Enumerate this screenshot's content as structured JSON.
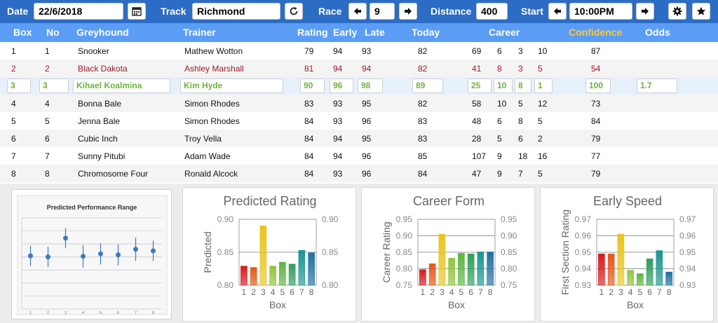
{
  "toolbar": {
    "date_label": "Date",
    "date_value": "22/6/2018",
    "track_label": "Track",
    "track_value": "Richmond",
    "race_label": "Race",
    "race_value": "9",
    "distance_label": "Distance",
    "distance_value": "400",
    "start_label": "Start",
    "start_value": "10:00PM",
    "icons": [
      "calendar-icon",
      "refresh-icon",
      "arrow-left-icon",
      "arrow-right-icon",
      "gear-icon",
      "star-icon"
    ]
  },
  "table": {
    "headers": {
      "box": "Box",
      "no": "No",
      "greyhound": "Greyhound",
      "trainer": "Trainer",
      "rating": "Rating",
      "early": "Early",
      "late": "Late",
      "today": "Today",
      "career": "Career",
      "confidence": "Confidence",
      "odds": "Odds"
    },
    "rows": [
      {
        "box": "1",
        "no": "1",
        "greyhound": "Snooker",
        "trainer": "Mathew Wotton",
        "rating": "79",
        "early": "94",
        "late": "93",
        "today": "82",
        "c1": "69",
        "c2": "6",
        "c3": "3",
        "c4": "10",
        "confidence": "87",
        "odds": ""
      },
      {
        "box": "2",
        "no": "2",
        "greyhound": "Black Dakota",
        "trainer": "Ashley Marshall",
        "rating": "81",
        "early": "94",
        "late": "94",
        "today": "82",
        "c1": "41",
        "c2": "8",
        "c3": "3",
        "c4": "5",
        "confidence": "54",
        "odds": ""
      },
      {
        "box": "3",
        "no": "3",
        "greyhound": "Kihael Koalmina",
        "trainer": "Kim Hyde",
        "rating": "90",
        "early": "96",
        "late": "98",
        "today": "89",
        "c1": "25",
        "c2": "10",
        "c3": "8",
        "c4": "1",
        "confidence": "100",
        "odds": "1.7"
      },
      {
        "box": "4",
        "no": "4",
        "greyhound": "Bonna Bale",
        "trainer": "Simon Rhodes",
        "rating": "83",
        "early": "93",
        "late": "95",
        "today": "82",
        "c1": "58",
        "c2": "10",
        "c3": "5",
        "c4": "12",
        "confidence": "73",
        "odds": ""
      },
      {
        "box": "5",
        "no": "5",
        "greyhound": "Jenna Bale",
        "trainer": "Simon Rhodes",
        "rating": "84",
        "early": "93",
        "late": "96",
        "today": "83",
        "c1": "48",
        "c2": "6",
        "c3": "8",
        "c4": "5",
        "confidence": "84",
        "odds": ""
      },
      {
        "box": "6",
        "no": "6",
        "greyhound": "Cubic Inch",
        "trainer": "Troy Vella",
        "rating": "84",
        "early": "94",
        "late": "95",
        "today": "83",
        "c1": "28",
        "c2": "5",
        "c3": "6",
        "c4": "2",
        "confidence": "79",
        "odds": ""
      },
      {
        "box": "7",
        "no": "7",
        "greyhound": "Sunny Pitubi",
        "trainer": "Adam Wade",
        "rating": "84",
        "early": "94",
        "late": "96",
        "today": "85",
        "c1": "107",
        "c2": "9",
        "c3": "18",
        "c4": "16",
        "confidence": "77",
        "odds": ""
      },
      {
        "box": "8",
        "no": "8",
        "greyhound": "Chromosome Four",
        "trainer": "Ronald Alcock",
        "rating": "84",
        "early": "93",
        "late": "96",
        "today": "84",
        "c1": "47",
        "c2": "9",
        "c3": "7",
        "c4": "5",
        "confidence": "79",
        "odds": ""
      }
    ]
  },
  "chart_data": [
    {
      "type": "scatter",
      "title": "Predicted Performance Range",
      "categories": [
        "1",
        "2",
        "3",
        "4",
        "5",
        "6",
        "7",
        "8"
      ],
      "values": [
        0.845,
        0.843,
        0.88,
        0.844,
        0.849,
        0.847,
        0.858,
        0.855
      ],
      "error_low": [
        0.825,
        0.823,
        0.86,
        0.822,
        0.828,
        0.826,
        0.835,
        0.835
      ],
      "error_high": [
        0.865,
        0.863,
        0.9,
        0.866,
        0.87,
        0.868,
        0.881,
        0.875
      ],
      "ylim": [
        0.74,
        0.92
      ],
      "grid": true,
      "marker_color": "#3d78c0"
    },
    {
      "type": "bar",
      "title": "Predicted Rating",
      "xlabel": "Box",
      "ylabel": "Predicted",
      "categories": [
        "1",
        "2",
        "3",
        "4",
        "5",
        "6",
        "7",
        "8"
      ],
      "values": [
        0.829,
        0.827,
        0.89,
        0.829,
        0.835,
        0.832,
        0.853,
        0.849
      ],
      "ylim": [
        0.8,
        0.9
      ],
      "yticks": [
        "0.80",
        "0.85",
        "0.90"
      ],
      "grid": true,
      "colors": [
        "#d7191c",
        "#e4561a",
        "#e8c41b",
        "#8fc43a",
        "#5bb540",
        "#2f9e5a",
        "#1a9590",
        "#1f6f9f"
      ]
    },
    {
      "type": "bar",
      "title": "Career Form",
      "xlabel": "Box",
      "ylabel": "Career Rating",
      "categories": [
        "1",
        "2",
        "3",
        "4",
        "5",
        "6",
        "7",
        "8"
      ],
      "values": [
        0.797,
        0.815,
        0.905,
        0.832,
        0.847,
        0.845,
        0.851,
        0.851
      ],
      "ylim": [
        0.75,
        0.95
      ],
      "yticks": [
        "0.75",
        "0.80",
        "0.85",
        "0.90",
        "0.95"
      ],
      "grid": true,
      "colors": [
        "#d7191c",
        "#e4561a",
        "#e8c41b",
        "#8fc43a",
        "#5bb540",
        "#2f9e5a",
        "#1a9590",
        "#1f6f9f"
      ]
    },
    {
      "type": "bar",
      "title": "Early Speed",
      "xlabel": "Box",
      "ylabel": "First Section Rating",
      "categories": [
        "1",
        "2",
        "3",
        "4",
        "5",
        "6",
        "7",
        "8"
      ],
      "values": [
        0.949,
        0.949,
        0.961,
        0.939,
        0.937,
        0.946,
        0.951,
        0.938
      ],
      "ylim": [
        0.93,
        0.97
      ],
      "yticks": [
        "0.93",
        "0.94",
        "0.95",
        "0.96",
        "0.97"
      ],
      "grid": true,
      "colors": [
        "#d7191c",
        "#e4561a",
        "#e8c41b",
        "#8fc43a",
        "#5bb540",
        "#2f9e5a",
        "#1a9590",
        "#1f6f9f"
      ]
    }
  ]
}
